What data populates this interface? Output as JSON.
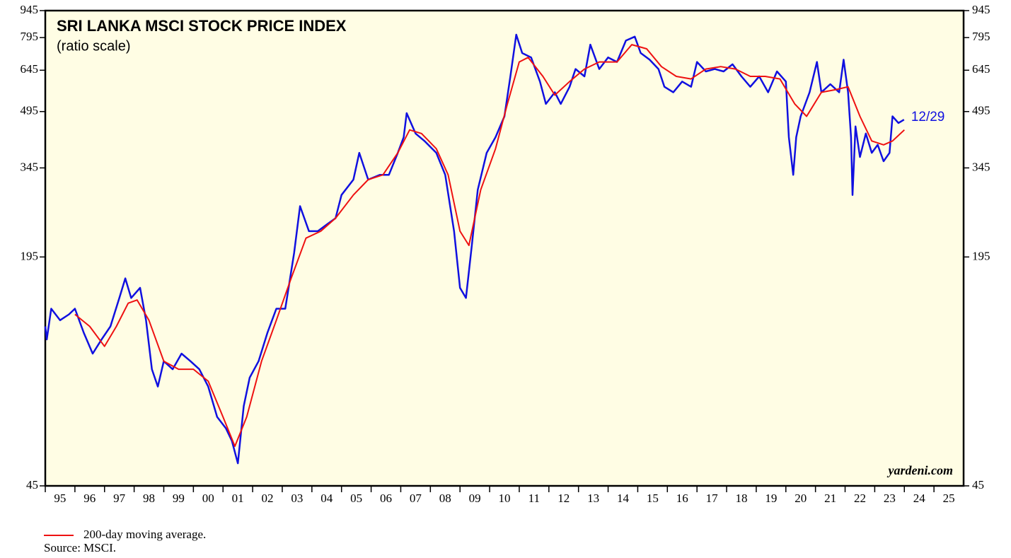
{
  "chart_data": {
    "type": "line",
    "title": "SRI LANKA MSCI STOCK PRICE INDEX",
    "subtitle": "(ratio scale)",
    "annotation": "12/29",
    "watermark": "yardeni.com",
    "source": "Source: MSCI.",
    "log_scale": true,
    "background": "#fffde4",
    "ylim": [
      45,
      945
    ],
    "yticks": [
      45,
      195,
      345,
      495,
      645,
      795,
      945
    ],
    "xlim": [
      1995,
      2026
    ],
    "xticks": [
      {
        "value": 1995,
        "label": "95"
      },
      {
        "value": 1996,
        "label": "96"
      },
      {
        "value": 1997,
        "label": "97"
      },
      {
        "value": 1998,
        "label": "98"
      },
      {
        "value": 1999,
        "label": "99"
      },
      {
        "value": 2000,
        "label": "00"
      },
      {
        "value": 2001,
        "label": "01"
      },
      {
        "value": 2002,
        "label": "02"
      },
      {
        "value": 2003,
        "label": "03"
      },
      {
        "value": 2004,
        "label": "04"
      },
      {
        "value": 2005,
        "label": "05"
      },
      {
        "value": 2006,
        "label": "06"
      },
      {
        "value": 2007,
        "label": "07"
      },
      {
        "value": 2008,
        "label": "08"
      },
      {
        "value": 2009,
        "label": "09"
      },
      {
        "value": 2010,
        "label": "10"
      },
      {
        "value": 2011,
        "label": "11"
      },
      {
        "value": 2012,
        "label": "12"
      },
      {
        "value": 2013,
        "label": "13"
      },
      {
        "value": 2014,
        "label": "14"
      },
      {
        "value": 2015,
        "label": "15"
      },
      {
        "value": 2016,
        "label": "16"
      },
      {
        "value": 2017,
        "label": "17"
      },
      {
        "value": 2018,
        "label": "18"
      },
      {
        "value": 2019,
        "label": "19"
      },
      {
        "value": 2020,
        "label": "20"
      },
      {
        "value": 2021,
        "label": "21"
      },
      {
        "value": 2022,
        "label": "22"
      },
      {
        "value": 2023,
        "label": "23"
      },
      {
        "value": 2024,
        "label": "24"
      },
      {
        "value": 2025,
        "label": "25"
      }
    ],
    "series": [
      {
        "color": "#1010e0",
        "x": [
          1995.0,
          1995.05,
          1995.2,
          1995.5,
          1995.8,
          1996.0,
          1996.3,
          1996.6,
          1996.9,
          1997.2,
          1997.5,
          1997.7,
          1997.9,
          1998.2,
          1998.4,
          1998.6,
          1998.8,
          1999.0,
          1999.3,
          1999.6,
          1999.9,
          2000.2,
          2000.5,
          2000.8,
          2001.1,
          2001.3,
          2001.5,
          2001.7,
          2001.9,
          2002.2,
          2002.5,
          2002.8,
          2003.1,
          2003.4,
          2003.6,
          2003.9,
          2004.2,
          2004.5,
          2004.8,
          2005.0,
          2005.4,
          2005.6,
          2005.9,
          2006.3,
          2006.6,
          2006.9,
          2007.1,
          2007.2,
          2007.5,
          2007.8,
          2008.2,
          2008.5,
          2008.8,
          2009.0,
          2009.2,
          2009.4,
          2009.6,
          2009.9,
          2010.2,
          2010.5,
          2010.7,
          2010.9,
          2011.1,
          2011.4,
          2011.7,
          2011.9,
          2012.2,
          2012.4,
          2012.7,
          2012.9,
          2013.2,
          2013.4,
          2013.7,
          2014.0,
          2014.3,
          2014.6,
          2014.9,
          2015.1,
          2015.4,
          2015.7,
          2015.9,
          2016.2,
          2016.5,
          2016.8,
          2017.0,
          2017.3,
          2017.6,
          2017.9,
          2018.2,
          2018.5,
          2018.8,
          2019.1,
          2019.4,
          2019.7,
          2020.0,
          2020.1,
          2020.25,
          2020.35,
          2020.5,
          2020.8,
          2021.05,
          2021.2,
          2021.5,
          2021.8,
          2021.95,
          2022.1,
          2022.2,
          2022.25,
          2022.35,
          2022.5,
          2022.7,
          2022.9,
          2023.1,
          2023.3,
          2023.5,
          2023.6,
          2023.8,
          2023.99
        ],
        "values": [
          125,
          115,
          140,
          130,
          135,
          140,
          120,
          105,
          115,
          125,
          150,
          170,
          150,
          160,
          130,
          95,
          85,
          100,
          95,
          105,
          100,
          95,
          85,
          70,
          65,
          60,
          52,
          75,
          90,
          100,
          120,
          140,
          140,
          200,
          270,
          230,
          230,
          240,
          250,
          290,
          320,
          380,
          320,
          330,
          330,
          380,
          420,
          490,
          430,
          410,
          380,
          330,
          230,
          160,
          150,
          210,
          300,
          380,
          420,
          480,
          620,
          810,
          720,
          700,
          600,
          520,
          560,
          520,
          580,
          650,
          620,
          760,
          650,
          700,
          680,
          780,
          800,
          720,
          690,
          650,
          580,
          560,
          600,
          580,
          680,
          640,
          650,
          640,
          670,
          620,
          580,
          620,
          560,
          640,
          600,
          420,
          330,
          420,
          480,
          560,
          680,
          560,
          590,
          560,
          690,
          560,
          420,
          290,
          450,
          370,
          430,
          380,
          400,
          360,
          380,
          480,
          460,
          470
        ]
      },
      {
        "name": "200-day moving average.",
        "color": "#ee1111",
        "x": [
          1996.0,
          1996.5,
          1997.0,
          1997.4,
          1997.8,
          1998.1,
          1998.5,
          1999.0,
          1999.5,
          2000.0,
          2000.5,
          2001.0,
          2001.4,
          2001.8,
          2002.3,
          2002.8,
          2003.3,
          2003.8,
          2004.3,
          2004.8,
          2005.4,
          2005.9,
          2006.4,
          2006.9,
          2007.3,
          2007.7,
          2008.2,
          2008.6,
          2009.0,
          2009.3,
          2009.7,
          2010.2,
          2010.6,
          2011.0,
          2011.3,
          2011.8,
          2012.2,
          2012.7,
          2013.2,
          2013.7,
          2014.3,
          2014.8,
          2015.3,
          2015.8,
          2016.3,
          2016.8,
          2017.3,
          2017.8,
          2018.3,
          2018.8,
          2019.3,
          2019.8,
          2020.3,
          2020.7,
          2021.2,
          2021.7,
          2022.1,
          2022.5,
          2022.9,
          2023.3,
          2023.6,
          2024.0
        ],
        "values": [
          135,
          125,
          110,
          125,
          145,
          148,
          130,
          100,
          95,
          95,
          88,
          70,
          58,
          70,
          100,
          130,
          170,
          220,
          230,
          250,
          290,
          320,
          330,
          380,
          440,
          430,
          390,
          330,
          230,
          210,
          300,
          390,
          520,
          680,
          700,
          620,
          550,
          600,
          650,
          680,
          680,
          760,
          740,
          660,
          620,
          610,
          650,
          660,
          650,
          620,
          620,
          610,
          520,
          480,
          560,
          570,
          580,
          480,
          410,
          400,
          410,
          440
        ]
      }
    ]
  }
}
